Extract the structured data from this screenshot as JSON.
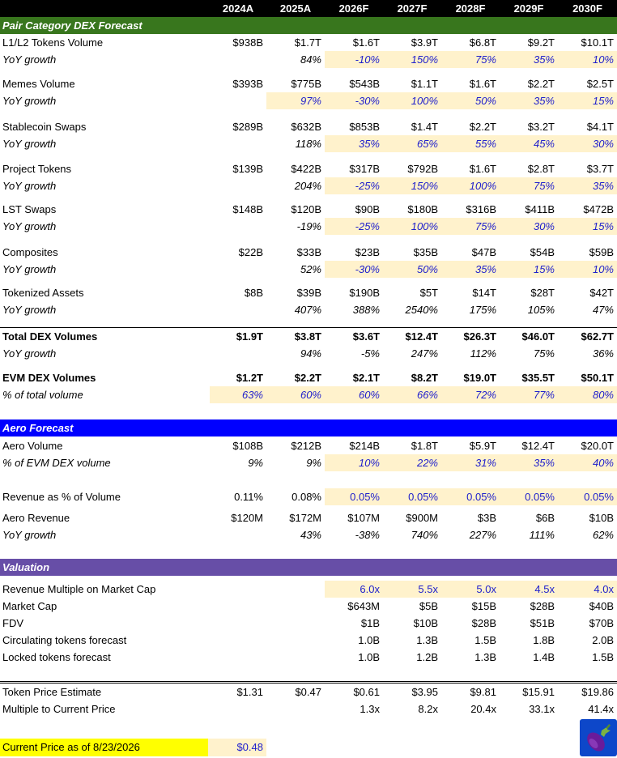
{
  "header": {
    "years": [
      "2024A",
      "2025A",
      "2026F",
      "2027F",
      "2028F",
      "2029F",
      "2030F"
    ]
  },
  "sections": {
    "pair": "Pair Category DEX Forecast",
    "aero": "Aero Forecast",
    "valuation": "Valuation"
  },
  "rows": {
    "l1l2_vol": {
      "label": "L1/L2 Tokens Volume",
      "values": [
        "$938B",
        "$1.7T",
        "$1.6T",
        "$3.9T",
        "$6.8T",
        "$9.2T",
        "$10.1T"
      ]
    },
    "l1l2_yoy": {
      "label": "YoY growth",
      "values": [
        "",
        "84%",
        "-10%",
        "150%",
        "75%",
        "35%",
        "10%"
      ]
    },
    "memes_vol": {
      "label": "Memes Volume",
      "values": [
        "$393B",
        "$775B",
        "$543B",
        "$1.1T",
        "$1.6T",
        "$2.2T",
        "$2.5T"
      ]
    },
    "memes_yoy": {
      "label": "YoY growth",
      "values": [
        "",
        "97%",
        "-30%",
        "100%",
        "50%",
        "35%",
        "15%"
      ]
    },
    "stable_vol": {
      "label": "Stablecoin Swaps",
      "values": [
        "$289B",
        "$632B",
        "$853B",
        "$1.4T",
        "$2.2T",
        "$3.2T",
        "$4.1T"
      ]
    },
    "stable_yoy": {
      "label": "YoY growth",
      "values": [
        "",
        "118%",
        "35%",
        "65%",
        "55%",
        "45%",
        "30%"
      ]
    },
    "project_vol": {
      "label": "Project Tokens",
      "values": [
        "$139B",
        "$422B",
        "$317B",
        "$792B",
        "$1.6T",
        "$2.8T",
        "$3.7T"
      ]
    },
    "project_yoy": {
      "label": "YoY growth",
      "values": [
        "",
        "204%",
        "-25%",
        "150%",
        "100%",
        "75%",
        "35%"
      ]
    },
    "lst_vol": {
      "label": "LST Swaps",
      "values": [
        "$148B",
        "$120B",
        "$90B",
        "$180B",
        "$316B",
        "$411B",
        "$472B"
      ]
    },
    "lst_yoy": {
      "label": "YoY growth",
      "values": [
        "",
        "-19%",
        "-25%",
        "100%",
        "75%",
        "30%",
        "15%"
      ]
    },
    "comp_vol": {
      "label": "Composites",
      "values": [
        "$22B",
        "$33B",
        "$23B",
        "$35B",
        "$47B",
        "$54B",
        "$59B"
      ]
    },
    "comp_yoy": {
      "label": "YoY growth",
      "values": [
        "",
        "52%",
        "-30%",
        "50%",
        "35%",
        "15%",
        "10%"
      ]
    },
    "tok_vol": {
      "label": "Tokenized Assets",
      "values": [
        "$8B",
        "$39B",
        "$190B",
        "$5T",
        "$14T",
        "$28T",
        "$42T"
      ]
    },
    "tok_yoy": {
      "label": "YoY growth",
      "values": [
        "",
        "407%",
        "388%",
        "2540%",
        "175%",
        "105%",
        "47%"
      ]
    },
    "total_vol": {
      "label": "Total DEX Volumes",
      "values": [
        "$1.9T",
        "$3.8T",
        "$3.6T",
        "$12.4T",
        "$26.3T",
        "$46.0T",
        "$62.7T"
      ]
    },
    "total_yoy": {
      "label": "YoY growth",
      "values": [
        "",
        "94%",
        "-5%",
        "247%",
        "112%",
        "75%",
        "36%"
      ]
    },
    "evm_vol": {
      "label": "EVM DEX Volumes",
      "values": [
        "$1.2T",
        "$2.2T",
        "$2.1T",
        "$8.2T",
        "$19.0T",
        "$35.5T",
        "$50.1T"
      ]
    },
    "evm_pct": {
      "label": "% of total volume",
      "values": [
        "63%",
        "60%",
        "60%",
        "66%",
        "72%",
        "77%",
        "80%"
      ]
    },
    "aero_vol": {
      "label": "Aero Volume",
      "values": [
        "$108B",
        "$212B",
        "$214B",
        "$1.8T",
        "$5.9T",
        "$12.4T",
        "$20.0T"
      ]
    },
    "aero_pct": {
      "label": "% of EVM DEX volume",
      "values": [
        "9%",
        "9%",
        "10%",
        "22%",
        "31%",
        "35%",
        "40%"
      ]
    },
    "rev_pct": {
      "label": "Revenue as % of Volume",
      "values": [
        "0.11%",
        "0.08%",
        "0.05%",
        "0.05%",
        "0.05%",
        "0.05%",
        "0.05%"
      ]
    },
    "aero_rev": {
      "label": "Aero Revenue",
      "values": [
        "$120M",
        "$172M",
        "$107M",
        "$900M",
        "$3B",
        "$6B",
        "$10B"
      ]
    },
    "aero_rev_yoy": {
      "label": "YoY growth",
      "values": [
        "",
        "43%",
        "-38%",
        "740%",
        "227%",
        "111%",
        "62%"
      ]
    },
    "rev_mult": {
      "label": "Revenue Multiple on Market Cap",
      "values": [
        "",
        "",
        "6.0x",
        "5.5x",
        "5.0x",
        "4.5x",
        "4.0x"
      ]
    },
    "mcap": {
      "label": "Market Cap",
      "values": [
        "",
        "",
        "$643M",
        "$5B",
        "$15B",
        "$28B",
        "$40B"
      ]
    },
    "fdv": {
      "label": "FDV",
      "values": [
        "",
        "",
        "$1B",
        "$10B",
        "$28B",
        "$51B",
        "$70B"
      ]
    },
    "circ": {
      "label": "Circulating tokens forecast",
      "values": [
        "",
        "",
        "1.0B",
        "1.3B",
        "1.5B",
        "1.8B",
        "2.0B"
      ]
    },
    "locked": {
      "label": "Locked tokens forecast",
      "values": [
        "",
        "",
        "1.0B",
        "1.2B",
        "1.3B",
        "1.4B",
        "1.5B"
      ]
    },
    "price": {
      "label": "Token Price Estimate",
      "values": [
        "$1.31",
        "$0.47",
        "$0.61",
        "$3.95",
        "$9.81",
        "$15.91",
        "$19.86"
      ]
    },
    "multiple": {
      "label": "Multiple to Current Price",
      "values": [
        "",
        "",
        "1.3x",
        "8.2x",
        "20.4x",
        "33.1x",
        "41.4x"
      ]
    }
  },
  "current_price": {
    "label": "Current Price as of 8/23/2026",
    "value": "$0.48"
  },
  "logo": {
    "icon": "eggplant-icon"
  },
  "colors": {
    "green": "#38761d",
    "blue": "#0000ff",
    "purple": "#674ea7",
    "input_blue": "#2020cc",
    "highlight": "#fff2cc",
    "yellow": "#ffff00"
  }
}
